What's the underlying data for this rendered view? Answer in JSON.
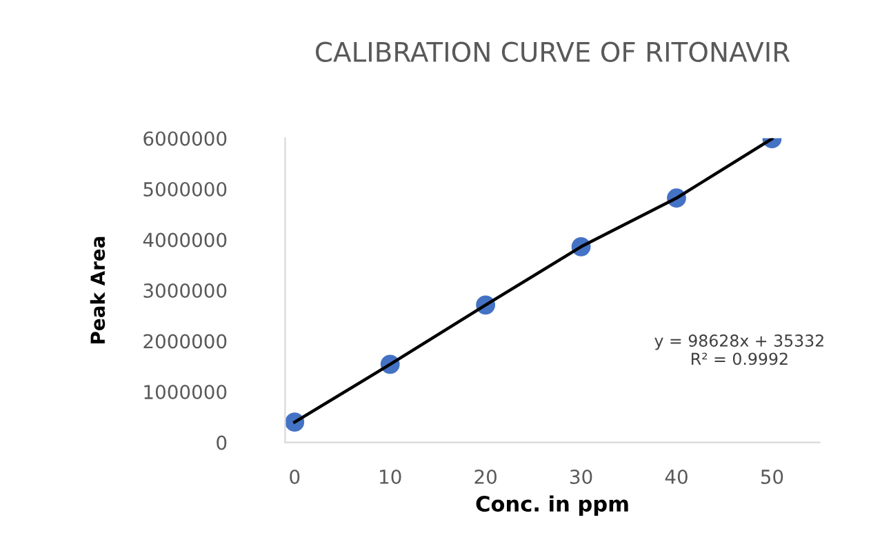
{
  "chart_data": {
    "type": "line",
    "title": "CALIBRATION CURVE OF RITONAVIR",
    "xlabel": "Conc. in ppm",
    "ylabel": "Peak Area",
    "categories": [
      "0",
      "10",
      "20",
      "30",
      "40",
      "50"
    ],
    "series": [
      {
        "color": "#4472c4",
        "values": [
          400000,
          1540000,
          2710000,
          3860000,
          4820000,
          5990000
        ]
      }
    ],
    "ylim": [
      0,
      6000000
    ],
    "yticks": [
      0,
      1000000,
      2000000,
      3000000,
      4000000,
      5000000,
      6000000
    ],
    "marker": "circle",
    "line_style": "solid",
    "grid": false,
    "legend": false,
    "annotations": [
      "y = 98628x + 35332\nR² = 0.9992"
    ]
  }
}
